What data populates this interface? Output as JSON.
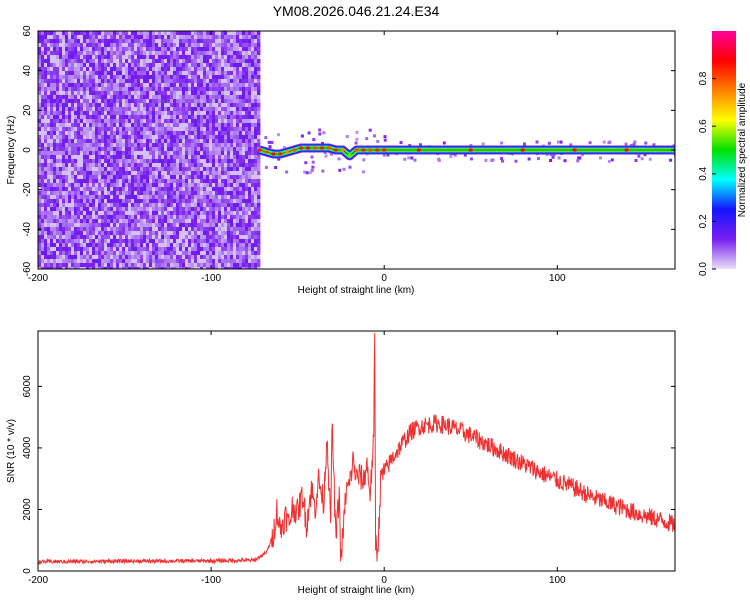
{
  "figure": {
    "title": "YM08.2026.046.21.24.E34"
  },
  "chart_data": [
    {
      "type": "heatmap",
      "xlabel": "Height of straight line (km)",
      "ylabel": "Frequency (Hz)",
      "xlim": [
        -200,
        168
      ],
      "ylim": [
        -60,
        60
      ],
      "xticks": [
        -200,
        -100,
        0,
        100
      ],
      "yticks": [
        -60,
        -40,
        -20,
        0,
        20,
        40,
        60
      ],
      "noise_region_x": [
        -200,
        -73
      ],
      "signal_trace": [
        {
          "x": -72,
          "y": 0,
          "v": 0.85
        },
        {
          "x": -68,
          "y": -1,
          "v": 0.8
        },
        {
          "x": -64,
          "y": -2,
          "v": 0.9
        },
        {
          "x": -60,
          "y": -2,
          "v": 0.85
        },
        {
          "x": -56,
          "y": -1,
          "v": 0.75
        },
        {
          "x": -52,
          "y": 0,
          "v": 0.8
        },
        {
          "x": -48,
          "y": 1,
          "v": 0.85
        },
        {
          "x": -44,
          "y": 1,
          "v": 0.9
        },
        {
          "x": -40,
          "y": 1,
          "v": 0.8
        },
        {
          "x": -36,
          "y": 1,
          "v": 0.85
        },
        {
          "x": -32,
          "y": 1,
          "v": 0.8
        },
        {
          "x": -28,
          "y": 0,
          "v": 0.85
        },
        {
          "x": -24,
          "y": 0,
          "v": 0.75
        },
        {
          "x": -20,
          "y": -3,
          "v": 0.55
        },
        {
          "x": -16,
          "y": 0,
          "v": 0.8
        },
        {
          "x": -12,
          "y": 0,
          "v": 0.85
        },
        {
          "x": -8,
          "y": 0,
          "v": 0.8
        },
        {
          "x": -4,
          "y": 0,
          "v": 0.85
        },
        {
          "x": 0,
          "y": 0,
          "v": 0.85
        },
        {
          "x": 20,
          "y": 0,
          "v": 0.9
        },
        {
          "x": 50,
          "y": 0,
          "v": 0.9
        },
        {
          "x": 80,
          "y": 0,
          "v": 0.9
        },
        {
          "x": 110,
          "y": 0,
          "v": 0.9
        },
        {
          "x": 140,
          "y": 0,
          "v": 0.9
        },
        {
          "x": 168,
          "y": 0,
          "v": 0.9
        }
      ],
      "colorbar": {
        "label": "Normalized spectral amplitude",
        "range": [
          0,
          1
        ],
        "ticks": [
          "0.0",
          "0.2",
          "0.4",
          "0.6",
          "0.8"
        ],
        "tick_values": [
          0,
          0.2,
          0.4,
          0.6,
          0.8
        ],
        "colormap": [
          "#e8e0f5",
          "#7a1ff0",
          "#1414ff",
          "#00ffff",
          "#00e000",
          "#ffff00",
          "#ff8000",
          "#ff0000",
          "#ff00a0"
        ]
      }
    },
    {
      "type": "line",
      "xlabel": "Height of straight line (km)",
      "ylabel": "SNR (10 * v/v)",
      "xlim": [
        -200,
        168
      ],
      "ylim": [
        0,
        7800
      ],
      "xticks": [
        -200,
        -100,
        0,
        100
      ],
      "yticks": [
        0,
        2000,
        4000,
        6000
      ],
      "series": [
        {
          "color": "#f03030",
          "x": [
            -200,
            -150,
            -100,
            -75,
            -68,
            -64,
            -62,
            -60,
            -57,
            -55,
            -53,
            -50,
            -47,
            -45,
            -42,
            -40,
            -38,
            -35,
            -33,
            -31,
            -30,
            -28,
            -26,
            -25,
            -22,
            -20,
            -18,
            -16,
            -14,
            -12,
            -10,
            -8,
            -7,
            -6,
            -5.5,
            -5,
            -4,
            -3,
            -2,
            0,
            5,
            10,
            15,
            20,
            25,
            30,
            35,
            40,
            50,
            60,
            70,
            80,
            90,
            100,
            110,
            120,
            130,
            140,
            150,
            160,
            168
          ],
          "y": [
            300,
            320,
            330,
            350,
            600,
            1200,
            2000,
            1300,
            1800,
            1500,
            2100,
            1900,
            2500,
            1500,
            2700,
            2000,
            3000,
            2200,
            4500,
            1500,
            4800,
            1000,
            2500,
            300,
            2600,
            2800,
            3600,
            3000,
            3100,
            2900,
            3500,
            2500,
            3500,
            4200,
            7800,
            1000,
            600,
            1500,
            3000,
            3200,
            3700,
            4100,
            4500,
            4700,
            4750,
            4800,
            4750,
            4650,
            4400,
            4100,
            3800,
            3500,
            3200,
            2950,
            2700,
            2400,
            2200,
            2000,
            1800,
            1650,
            1500
          ]
        }
      ]
    }
  ]
}
